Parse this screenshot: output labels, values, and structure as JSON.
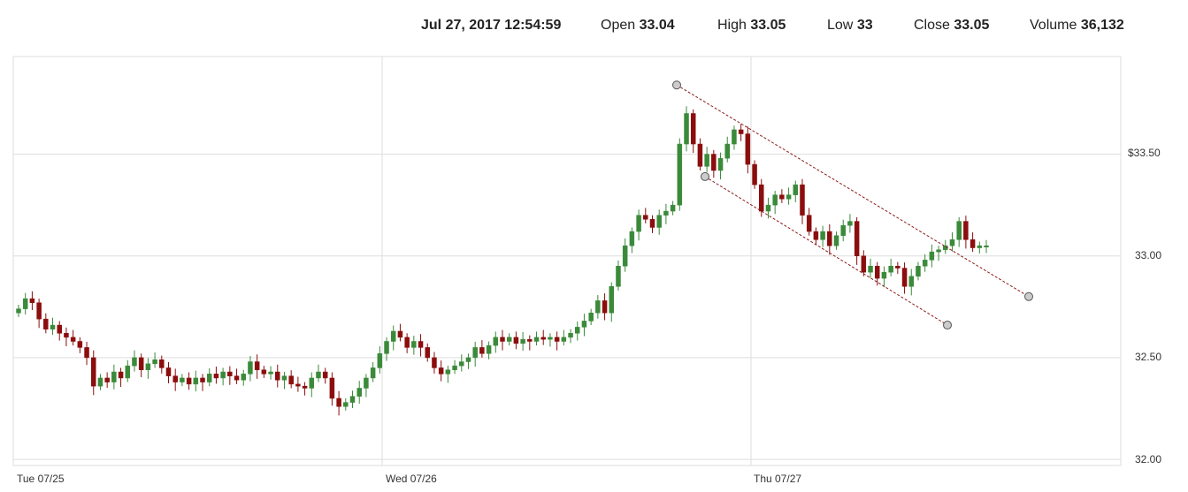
{
  "header": {
    "date": "Jul 27, 2017 12:54:59",
    "open_label": "Open",
    "open_value": "33.04",
    "high_label": "High",
    "high_value": "33.05",
    "low_label": "Low",
    "low_value": "33",
    "close_label": "Close",
    "close_value": "33.05",
    "volume_label": "Volume",
    "volume_value": "36,132"
  },
  "colors": {
    "up": "#3a8a3a",
    "down": "#8b0d0d",
    "grid": "#dddddd",
    "trend": "#8b1a1a"
  },
  "chart_data": {
    "type": "candlestick",
    "x_tick_labels": [
      "Tue 07/25",
      "Wed 07/26",
      "Thu 07/27"
    ],
    "y_tick_labels": [
      "$33.50",
      "33.00",
      "32.50",
      "32.00"
    ],
    "y_ticks": [
      33.5,
      33.0,
      32.5,
      32.0
    ],
    "ylim": [
      31.97,
      33.98
    ],
    "grid": true,
    "series_closes": [
      32.74,
      32.79,
      32.77,
      32.69,
      32.64,
      32.66,
      32.62,
      32.6,
      32.58,
      32.55,
      32.5,
      32.36,
      32.4,
      32.38,
      32.43,
      32.4,
      32.46,
      32.5,
      32.44,
      32.47,
      32.49,
      32.45,
      32.41,
      32.38,
      32.4,
      32.37,
      32.4,
      32.38,
      32.42,
      32.4,
      32.43,
      32.41,
      32.39,
      32.42,
      32.48,
      32.44,
      32.42,
      32.43,
      32.39,
      32.41,
      32.37,
      32.36,
      32.35,
      32.4,
      32.43,
      32.4,
      32.3,
      32.26,
      32.28,
      32.31,
      32.35,
      32.4,
      32.45,
      32.52,
      32.58,
      32.63,
      32.6,
      32.55,
      32.58,
      32.55,
      32.5,
      32.45,
      32.42,
      32.44,
      32.46,
      32.48,
      32.5,
      32.55,
      32.52,
      32.56,
      32.6,
      32.58,
      32.6,
      32.57,
      32.59,
      32.58,
      32.6,
      32.59,
      32.6,
      32.58,
      32.6,
      32.62,
      32.65,
      32.68,
      32.72,
      32.78,
      32.72,
      32.85,
      32.95,
      33.05,
      33.12,
      33.2,
      33.18,
      33.14,
      33.2,
      33.22,
      33.25,
      33.55,
      33.7,
      33.55,
      33.44,
      33.5,
      33.42,
      33.48,
      33.55,
      33.62,
      33.6,
      33.45,
      33.35,
      33.22,
      33.25,
      33.3,
      33.28,
      33.3,
      33.35,
      33.2,
      33.12,
      33.08,
      33.12,
      33.05,
      33.1,
      33.15,
      33.17,
      33.0,
      32.92,
      32.95,
      32.89,
      32.92,
      32.95,
      32.94,
      32.85,
      32.9,
      32.95,
      32.98,
      33.02,
      33.03,
      33.05,
      33.08,
      33.17,
      33.08,
      33.04,
      33.05,
      33.05
    ],
    "trend_channel": {
      "upper_line": {
        "from": [
          "Wed 07/26 late",
          33.84
        ],
        "to": [
          "Thu 07/27 end",
          32.8
        ]
      },
      "lower_line": {
        "from": [
          "Wed 07/26 late",
          33.39
        ],
        "to": [
          "Thu 07/27 late",
          32.66
        ]
      }
    }
  }
}
